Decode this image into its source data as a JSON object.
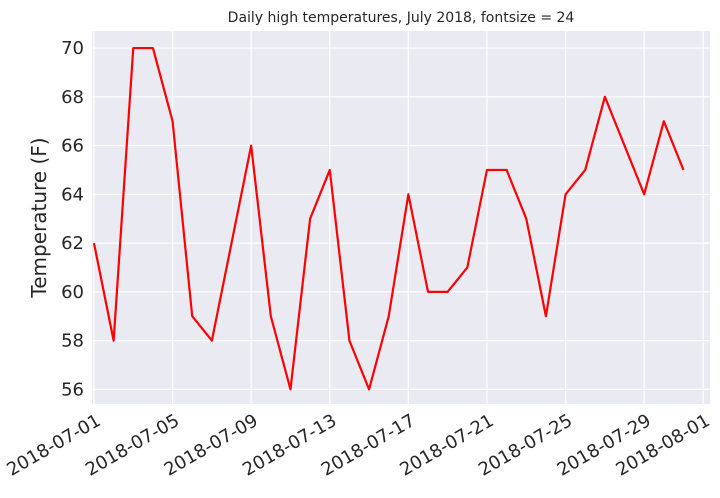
{
  "chart_data": {
    "type": "line",
    "title": "Daily high temperatures, July 2018, fontsize = 24",
    "xlabel": "",
    "ylabel": "Temperature (F)",
    "x": [
      "2018-07-01",
      "2018-07-02",
      "2018-07-03",
      "2018-07-04",
      "2018-07-05",
      "2018-07-06",
      "2018-07-07",
      "2018-07-08",
      "2018-07-09",
      "2018-07-10",
      "2018-07-11",
      "2018-07-12",
      "2018-07-13",
      "2018-07-14",
      "2018-07-15",
      "2018-07-16",
      "2018-07-17",
      "2018-07-18",
      "2018-07-19",
      "2018-07-20",
      "2018-07-21",
      "2018-07-22",
      "2018-07-23",
      "2018-07-24",
      "2018-07-25",
      "2018-07-26",
      "2018-07-27",
      "2018-07-28",
      "2018-07-29",
      "2018-07-30",
      "2018-07-31"
    ],
    "series": [
      {
        "values": [
          62,
          58,
          70,
          70,
          67,
          59,
          58,
          62,
          66,
          59,
          56,
          63,
          65,
          58,
          56,
          59,
          64,
          60,
          60,
          61,
          65,
          65,
          63,
          59,
          64,
          65,
          68,
          66,
          64,
          67,
          65
        ],
        "color": "#ff0000"
      }
    ],
    "xlim": [
      "2018-07-01",
      "2018-08-01"
    ],
    "ylim": [
      55.4,
      70.7
    ],
    "xticks": [
      "2018-07-01",
      "2018-07-05",
      "2018-07-09",
      "2018-07-13",
      "2018-07-17",
      "2018-07-21",
      "2018-07-25",
      "2018-07-29",
      "2018-08-01"
    ],
    "yticks": [
      56,
      58,
      60,
      62,
      64,
      66,
      68,
      70
    ],
    "grid": true,
    "background": "#eaeaf2",
    "gridColor": "#ffffff"
  }
}
